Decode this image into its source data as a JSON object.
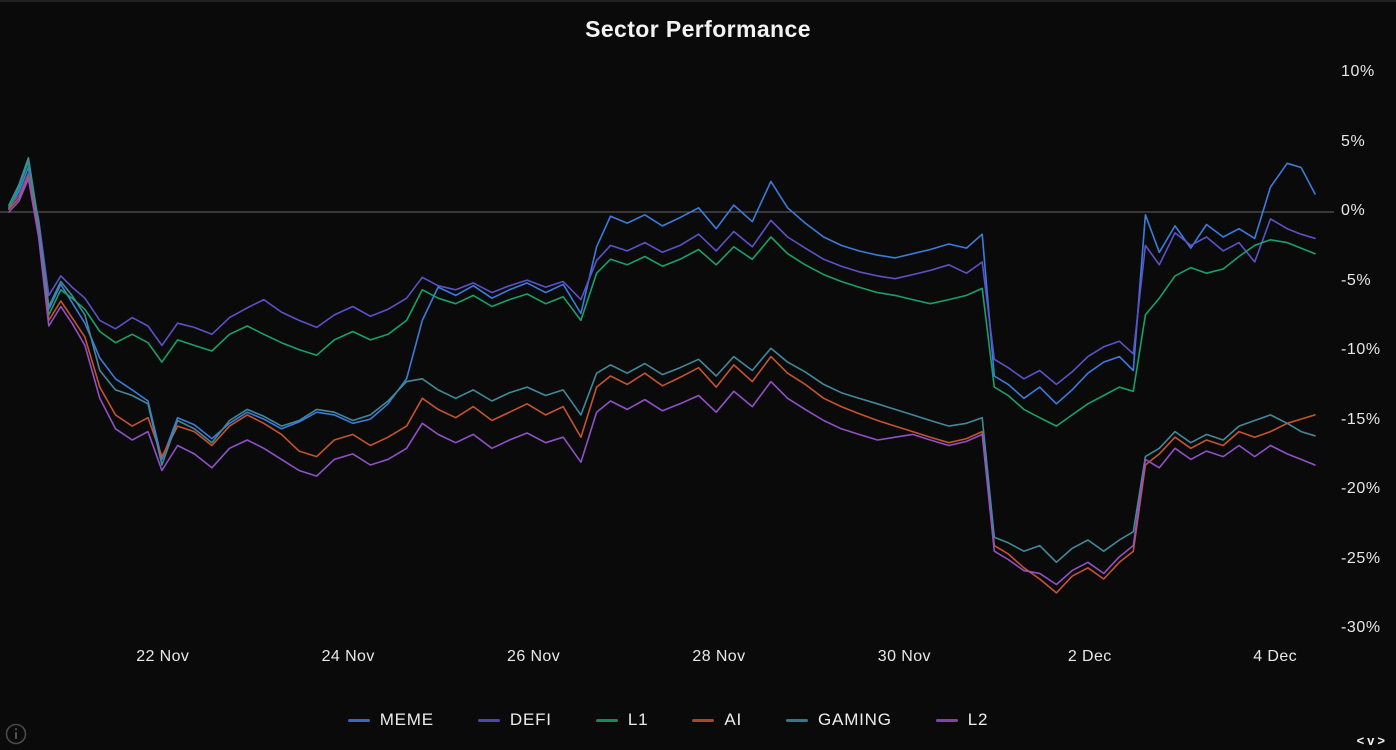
{
  "title": "Sector Performance",
  "footer": {
    "nav_glyphs": "<v>"
  },
  "chart_data": {
    "type": "line",
    "title": "Sector Performance",
    "xlabel": "",
    "ylabel": "",
    "legend_position": "bottom",
    "grid": false,
    "zero_line": true,
    "xlim": [
      -1.67,
      12.43
    ],
    "ylim": [
      -30,
      10
    ],
    "yticks": [
      {
        "v": 10,
        "label": "10%"
      },
      {
        "v": 5,
        "label": "5%"
      },
      {
        "v": 0,
        "label": "0%"
      },
      {
        "v": -5,
        "label": "-5%"
      },
      {
        "v": -10,
        "label": "-10%"
      },
      {
        "v": -15,
        "label": "-15%"
      },
      {
        "v": -20,
        "label": "-20%"
      },
      {
        "v": -25,
        "label": "-25%"
      },
      {
        "v": -30,
        "label": "-30%"
      }
    ],
    "xticks": [
      {
        "t": 0,
        "label": "22 Nov"
      },
      {
        "t": 2,
        "label": "24 Nov"
      },
      {
        "t": 4,
        "label": "26 Nov"
      },
      {
        "t": 6,
        "label": "28 Nov"
      },
      {
        "t": 8,
        "label": "30 Nov"
      },
      {
        "t": 10,
        "label": "2 Dec"
      },
      {
        "t": 12,
        "label": "4 Dec"
      }
    ],
    "x_days_from_22_nov": [
      -1.66,
      -1.55,
      -1.45,
      -1.34,
      -1.23,
      -1.1,
      -0.98,
      -0.84,
      -0.68,
      -0.51,
      -0.33,
      -0.16,
      -0.01,
      0.16,
      0.34,
      0.53,
      0.72,
      0.91,
      1.09,
      1.28,
      1.47,
      1.66,
      1.85,
      2.05,
      2.24,
      2.43,
      2.63,
      2.8,
      2.97,
      3.16,
      3.35,
      3.55,
      3.74,
      3.93,
      4.13,
      4.32,
      4.51,
      4.68,
      4.83,
      5.01,
      5.2,
      5.39,
      5.58,
      5.78,
      5.97,
      6.16,
      6.36,
      6.56,
      6.74,
      6.93,
      7.13,
      7.32,
      7.51,
      7.71,
      7.9,
      8.09,
      8.28,
      8.48,
      8.67,
      8.84,
      8.97,
      9.12,
      9.29,
      9.46,
      9.64,
      9.81,
      9.98,
      10.15,
      10.32,
      10.47,
      10.6,
      10.75,
      10.92,
      11.09,
      11.26,
      11.44,
      11.61,
      11.78,
      11.95,
      12.13,
      12.28,
      12.43
    ],
    "series": [
      {
        "name": "MEME",
        "color": "#3b7bdc",
        "values": [
          0.3,
          1.5,
          3.2,
          -1.0,
          -7.0,
          -5.2,
          -6.5,
          -8.0,
          -10.5,
          -12.0,
          -12.8,
          -13.6,
          -17.8,
          -14.8,
          -15.3,
          -16.3,
          -15.2,
          -14.4,
          -14.9,
          -15.6,
          -15.1,
          -14.4,
          -14.6,
          -15.2,
          -14.9,
          -13.8,
          -12.0,
          -7.8,
          -5.4,
          -6.0,
          -5.3,
          -6.2,
          -5.6,
          -5.1,
          -5.8,
          -5.2,
          -7.3,
          -2.5,
          -0.3,
          -0.8,
          -0.2,
          -1.0,
          -0.4,
          0.3,
          -1.2,
          0.5,
          -0.7,
          2.2,
          0.3,
          -0.8,
          -1.8,
          -2.4,
          -2.8,
          -3.1,
          -3.3,
          -3.0,
          -2.7,
          -2.3,
          -2.6,
          -1.6,
          -11.8,
          -12.4,
          -13.4,
          -12.6,
          -13.8,
          -12.8,
          -11.6,
          -10.8,
          -10.4,
          -11.4,
          -0.2,
          -2.9,
          -1.0,
          -2.6,
          -0.9,
          -1.8,
          -1.2,
          -1.9,
          1.8,
          3.5,
          3.2,
          1.3
        ]
      },
      {
        "name": "DEFI",
        "color": "#5b52c7",
        "values": [
          0.4,
          1.2,
          2.8,
          -0.5,
          -6.0,
          -4.6,
          -5.4,
          -6.2,
          -7.8,
          -8.4,
          -7.6,
          -8.2,
          -9.6,
          -8.0,
          -8.3,
          -8.8,
          -7.6,
          -6.9,
          -6.3,
          -7.2,
          -7.8,
          -8.3,
          -7.4,
          -6.8,
          -7.5,
          -7.0,
          -6.2,
          -4.7,
          -5.3,
          -5.6,
          -5.1,
          -5.8,
          -5.3,
          -4.9,
          -5.4,
          -5.0,
          -6.3,
          -3.5,
          -2.4,
          -2.8,
          -2.2,
          -2.9,
          -2.4,
          -1.6,
          -2.8,
          -1.4,
          -2.5,
          -0.6,
          -1.8,
          -2.6,
          -3.4,
          -3.9,
          -4.3,
          -4.6,
          -4.8,
          -4.5,
          -4.2,
          -3.8,
          -4.4,
          -3.6,
          -10.6,
          -11.2,
          -12.0,
          -11.4,
          -12.4,
          -11.5,
          -10.4,
          -9.7,
          -9.3,
          -10.2,
          -2.4,
          -3.8,
          -1.5,
          -2.4,
          -1.8,
          -2.8,
          -2.2,
          -3.6,
          -0.5,
          -1.2,
          -1.6,
          -1.9
        ]
      },
      {
        "name": "L1",
        "color": "#18a06b",
        "values": [
          0.2,
          1.8,
          3.6,
          -1.2,
          -7.4,
          -5.6,
          -6.2,
          -7.0,
          -8.6,
          -9.4,
          -8.8,
          -9.4,
          -10.8,
          -9.2,
          -9.6,
          -10.0,
          -8.8,
          -8.2,
          -8.8,
          -9.4,
          -9.9,
          -10.3,
          -9.2,
          -8.6,
          -9.2,
          -8.8,
          -7.8,
          -5.6,
          -6.2,
          -6.6,
          -6.0,
          -6.8,
          -6.3,
          -5.9,
          -6.6,
          -6.1,
          -7.8,
          -4.4,
          -3.4,
          -3.8,
          -3.2,
          -3.9,
          -3.4,
          -2.7,
          -3.8,
          -2.5,
          -3.4,
          -1.8,
          -3.0,
          -3.8,
          -4.5,
          -5.0,
          -5.4,
          -5.8,
          -6.0,
          -6.3,
          -6.6,
          -6.3,
          -6.0,
          -5.5,
          -12.6,
          -13.2,
          -14.2,
          -14.8,
          -15.4,
          -14.6,
          -13.8,
          -13.2,
          -12.6,
          -12.9,
          -7.4,
          -6.2,
          -4.6,
          -4.0,
          -4.4,
          -4.1,
          -3.2,
          -2.4,
          -2.0,
          -2.2,
          -2.6,
          -3.0
        ]
      },
      {
        "name": "AI",
        "color": "#c5532e",
        "values": [
          0.2,
          1.0,
          2.6,
          -1.5,
          -7.8,
          -6.4,
          -7.6,
          -9.0,
          -12.6,
          -14.6,
          -15.4,
          -14.8,
          -17.6,
          -15.4,
          -15.8,
          -16.8,
          -15.4,
          -14.6,
          -15.2,
          -16.0,
          -17.2,
          -17.6,
          -16.4,
          -16.0,
          -16.8,
          -16.2,
          -15.4,
          -13.4,
          -14.2,
          -14.8,
          -14.0,
          -15.0,
          -14.4,
          -13.8,
          -14.6,
          -14.0,
          -16.2,
          -12.6,
          -11.8,
          -12.4,
          -11.6,
          -12.5,
          -11.9,
          -11.2,
          -12.6,
          -11.0,
          -12.2,
          -10.4,
          -11.6,
          -12.4,
          -13.4,
          -14.0,
          -14.5,
          -15.0,
          -15.4,
          -15.8,
          -16.2,
          -16.6,
          -16.3,
          -15.8,
          -24.0,
          -24.6,
          -25.6,
          -26.4,
          -27.4,
          -26.2,
          -25.6,
          -26.4,
          -25.2,
          -24.4,
          -18.2,
          -17.4,
          -16.2,
          -17.0,
          -16.4,
          -16.8,
          -15.8,
          -16.2,
          -15.8,
          -15.2,
          -14.9,
          -14.6
        ]
      },
      {
        "name": "GAMING",
        "color": "#41899a",
        "values": [
          0.5,
          2.0,
          3.9,
          -0.8,
          -6.8,
          -5.0,
          -6.0,
          -7.4,
          -11.4,
          -12.8,
          -13.2,
          -13.8,
          -18.2,
          -15.0,
          -15.6,
          -16.6,
          -15.0,
          -14.2,
          -14.7,
          -15.4,
          -15.0,
          -14.2,
          -14.4,
          -15.0,
          -14.6,
          -13.6,
          -12.2,
          -12.0,
          -12.8,
          -13.4,
          -12.8,
          -13.6,
          -13.0,
          -12.6,
          -13.2,
          -12.8,
          -14.6,
          -11.6,
          -11.0,
          -11.6,
          -10.9,
          -11.7,
          -11.2,
          -10.6,
          -11.8,
          -10.4,
          -11.4,
          -9.8,
          -10.8,
          -11.5,
          -12.4,
          -13.0,
          -13.4,
          -13.8,
          -14.2,
          -14.6,
          -15.0,
          -15.4,
          -15.2,
          -14.8,
          -23.4,
          -23.8,
          -24.4,
          -24.0,
          -25.2,
          -24.2,
          -23.6,
          -24.4,
          -23.6,
          -23.0,
          -17.6,
          -17.0,
          -15.8,
          -16.6,
          -16.0,
          -16.4,
          -15.4,
          -15.0,
          -14.6,
          -15.2,
          -15.8,
          -16.1
        ]
      },
      {
        "name": "L2",
        "color": "#9150c8",
        "values": [
          0.0,
          0.8,
          2.4,
          -1.8,
          -8.2,
          -6.8,
          -8.0,
          -9.6,
          -13.4,
          -15.6,
          -16.4,
          -15.8,
          -18.6,
          -16.8,
          -17.4,
          -18.4,
          -17.0,
          -16.4,
          -17.0,
          -17.8,
          -18.6,
          -19.0,
          -17.8,
          -17.4,
          -18.2,
          -17.8,
          -17.0,
          -15.2,
          -16.0,
          -16.6,
          -16.0,
          -17.0,
          -16.4,
          -15.9,
          -16.6,
          -16.2,
          -18.0,
          -14.4,
          -13.6,
          -14.2,
          -13.5,
          -14.3,
          -13.8,
          -13.2,
          -14.4,
          -12.9,
          -14.0,
          -12.2,
          -13.4,
          -14.2,
          -15.0,
          -15.6,
          -16.0,
          -16.4,
          -16.2,
          -16.0,
          -16.4,
          -16.8,
          -16.5,
          -16.0,
          -24.4,
          -25.0,
          -25.8,
          -26.0,
          -26.8,
          -25.8,
          -25.2,
          -26.0,
          -24.8,
          -24.0,
          -17.8,
          -18.4,
          -17.0,
          -17.8,
          -17.2,
          -17.6,
          -16.8,
          -17.6,
          -16.8,
          -17.4,
          -17.8,
          -18.2
        ]
      }
    ]
  }
}
